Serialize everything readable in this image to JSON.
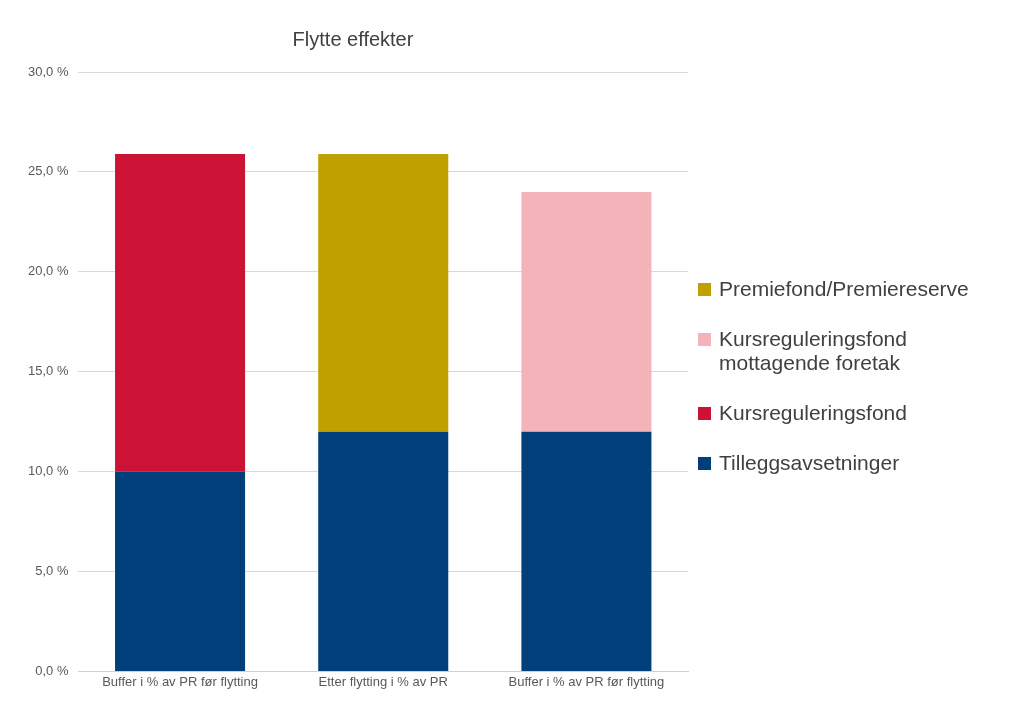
{
  "chart_data": {
    "type": "bar",
    "title": "Flytte effekter",
    "stacked": true,
    "categories": [
      "Buffer i % av PR før flytting",
      "Etter flytting i % av PR",
      "Buffer i % av PR før flytting"
    ],
    "series": [
      {
        "name": "Tilleggsavsetninger",
        "color": "#003f7a",
        "values": [
          10.0,
          12.0,
          12.0
        ]
      },
      {
        "name": "Kursreguleringsfond",
        "color": "#cc1336",
        "values": [
          15.9,
          null,
          null
        ]
      },
      {
        "name": "Kursreguleringsfond mottagende foretak",
        "color": "#f3b3b9",
        "values": [
          null,
          null,
          12.0
        ]
      },
      {
        "name": "Premiefond/Premiereserve",
        "color": "#bfa000",
        "values": [
          null,
          13.9,
          null
        ]
      }
    ],
    "ylim": [
      0,
      30
    ],
    "yticks": [
      {
        "value": 0,
        "label": "0,0 %"
      },
      {
        "value": 5,
        "label": "5,0 %"
      },
      {
        "value": 10,
        "label": "10,0 %"
      },
      {
        "value": 15,
        "label": "15,0 %"
      },
      {
        "value": 20,
        "label": "20,0 %"
      },
      {
        "value": 25,
        "label": "25,0 %"
      },
      {
        "value": 30,
        "label": "30,0 %"
      }
    ],
    "grid": "y",
    "legend": "right"
  }
}
